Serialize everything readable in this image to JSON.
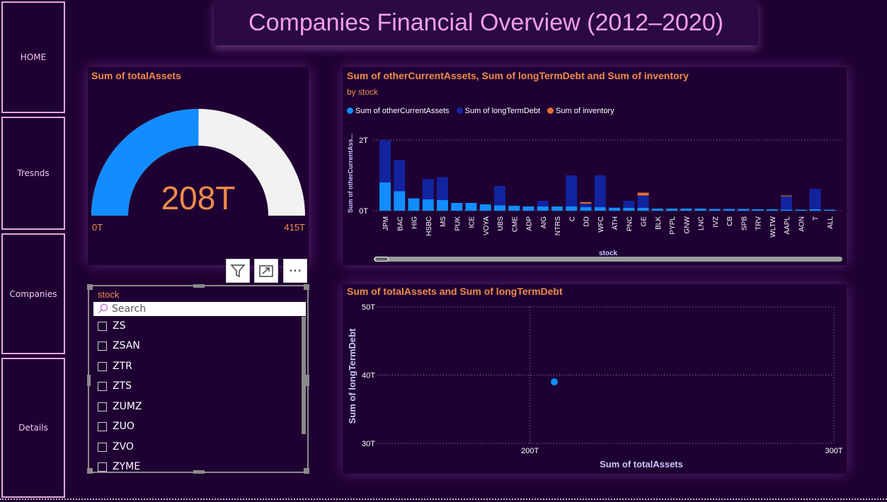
{
  "nav": {
    "home": "HOME",
    "trends": "Tresnds",
    "companies": "Companies",
    "details": "Details"
  },
  "page_title": "Companies Financial Overview (2012–2020)",
  "gauge": {
    "title": "Sum of totalAssets",
    "value_label": "208T",
    "min_label": "0T",
    "max_label": "415T",
    "value": 208,
    "max": 415,
    "fill_color": "#118dff",
    "track_color": "#f2f2f2",
    "value_color": "#ef8b4a"
  },
  "toolbar": {
    "filter_icon": "filter-icon",
    "focus_icon": "focus-mode-icon",
    "more_icon": "more-options-icon",
    "more_label": "···"
  },
  "slicer": {
    "header": "stock",
    "search_placeholder": "Search",
    "items": [
      "ZS",
      "ZSAN",
      "ZTR",
      "ZTS",
      "ZUMZ",
      "ZUO",
      "ZVO",
      "ZYME"
    ]
  },
  "bar_chart": {
    "title": "Sum of otherCurrentAssets, Sum of longTermDebt and Sum of inventory",
    "subtitle": "by stock",
    "ylabel": "Sum of otherCurrentAss...",
    "xlabel": "stock",
    "legend": [
      "Sum of otherCurrentAssets",
      "Sum of longTermDebt",
      "Sum of inventory"
    ],
    "colors": [
      "#118dff",
      "#12239e",
      "#e66c37"
    ],
    "yticks": [
      "0T",
      "2T"
    ]
  },
  "scatter_chart": {
    "title": "Sum of totalAssets and Sum of longTermDebt",
    "xlabel": "Sum of totalAssets",
    "ylabel": "Sum of longTermDebt",
    "xticks": [
      "200T",
      "300T"
    ],
    "yticks": [
      "30T",
      "40T",
      "50T"
    ],
    "point_color": "#118dff"
  },
  "chart_data": [
    {
      "type": "bar",
      "title": "Sum of otherCurrentAssets, Sum of longTermDebt and Sum of inventory",
      "subtitle": "by stock",
      "xlabel": "stock",
      "ylabel": "Sum of otherCurrentAss...",
      "ylim": [
        0,
        2.2
      ],
      "unit": "T",
      "stacked": true,
      "categories": [
        "JPM",
        "BAC",
        "HIG",
        "HSBC",
        "MS",
        "PUK",
        "ICE",
        "VOYA",
        "UBS",
        "CME",
        "ADP",
        "AIG",
        "NTRS",
        "C",
        "DD",
        "WFC",
        "ATH",
        "PNC",
        "GE",
        "BLK",
        "PYPL",
        "GNW",
        "LNC",
        "IVZ",
        "CB",
        "SPB",
        "TRV",
        "WLTW",
        "AAPL",
        "AON",
        "T",
        "ALL"
      ],
      "series": [
        {
          "name": "Sum of otherCurrentAssets",
          "values": [
            0.8,
            0.55,
            0.35,
            0.32,
            0.3,
            0.22,
            0.22,
            0.18,
            0.15,
            0.14,
            0.12,
            0.12,
            0.12,
            0.12,
            0.1,
            0.1,
            0.08,
            0.08,
            0.08,
            0.06,
            0.06,
            0.06,
            0.06,
            0.05,
            0.05,
            0.05,
            0.04,
            0.04,
            0.03,
            0.03,
            0.04,
            0.03
          ]
        },
        {
          "name": "Sum of longTermDebt",
          "values": [
            1.2,
            0.88,
            0.0,
            0.58,
            0.65,
            0.0,
            0.0,
            0.0,
            0.55,
            0.0,
            0.0,
            0.16,
            0.0,
            0.88,
            0.1,
            0.9,
            0.02,
            0.2,
            0.35,
            0.0,
            0.0,
            0.0,
            0.0,
            0.0,
            0.0,
            0.0,
            0.0,
            0.0,
            0.38,
            0.0,
            0.58,
            0.0
          ]
        },
        {
          "name": "Sum of inventory",
          "values": [
            0,
            0,
            0,
            0,
            0,
            0,
            0,
            0,
            0,
            0,
            0,
            0,
            0,
            0,
            0.04,
            0,
            0,
            0,
            0.08,
            0,
            0,
            0,
            0,
            0,
            0,
            0,
            0,
            0,
            0.02,
            0,
            0,
            0
          ]
        }
      ]
    },
    {
      "type": "scatter",
      "title": "Sum of totalAssets and Sum of longTermDebt",
      "xlabel": "Sum of totalAssets",
      "ylabel": "Sum of longTermDebt",
      "xlim": [
        150,
        300
      ],
      "ylim": [
        30,
        50
      ],
      "unit": "T",
      "points": [
        {
          "x": 208,
          "y": 39
        }
      ]
    }
  ]
}
